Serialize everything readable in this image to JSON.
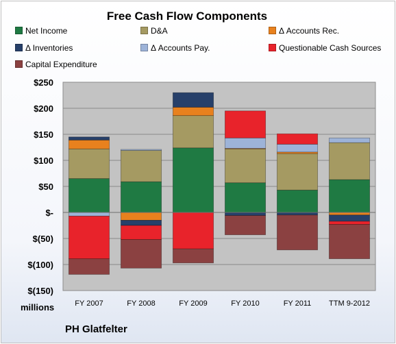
{
  "company": "PH Glatfelter",
  "chart_data": {
    "type": "bar",
    "stacked": true,
    "title": "Free Cash Flow Components",
    "units_label": "millions",
    "categories": [
      "FY 2007",
      "FY 2008",
      "FY 2009",
      "FY 2010",
      "FY 2011",
      "TTM 9-2012"
    ],
    "ylim": [
      -150,
      250
    ],
    "y_ticks": [
      250,
      200,
      150,
      100,
      50,
      0,
      -50,
      -100,
      -150
    ],
    "y_tick_labels": [
      "$250",
      "$200",
      "$150",
      "$100",
      "$50",
      "$-",
      "$(50)",
      "$(100)",
      "$(150)"
    ],
    "grid": true,
    "legend_position": "top",
    "series": [
      {
        "name": "Net Income",
        "color": "#1f7a43",
        "values": [
          65,
          59,
          124,
          57,
          43,
          63
        ]
      },
      {
        "name": "D&A",
        "color": "#a59a62",
        "values": [
          57,
          60,
          62,
          65,
          70,
          71
        ]
      },
      {
        "name": "Δ Accounts Rec.",
        "color": "#e8811e",
        "values": [
          17,
          -15,
          16,
          1,
          3,
          -5
        ]
      },
      {
        "name": "Δ Inventories",
        "color": "#27406a",
        "values": [
          6,
          -10,
          28,
          -6,
          -5,
          -12
        ]
      },
      {
        "name": "Δ Accounts Pay.",
        "color": "#9db3d8",
        "values": [
          -7,
          2,
          0,
          20,
          15,
          9
        ]
      },
      {
        "name": "Questionable Cash Sources",
        "color": "#e8232b",
        "values": [
          -82,
          -27,
          -70,
          52,
          20,
          -6
        ]
      },
      {
        "name": "Capital Expenditure",
        "color": "#8b4141",
        "values": [
          -30,
          -55,
          -27,
          -37,
          -67,
          -66
        ]
      }
    ]
  }
}
